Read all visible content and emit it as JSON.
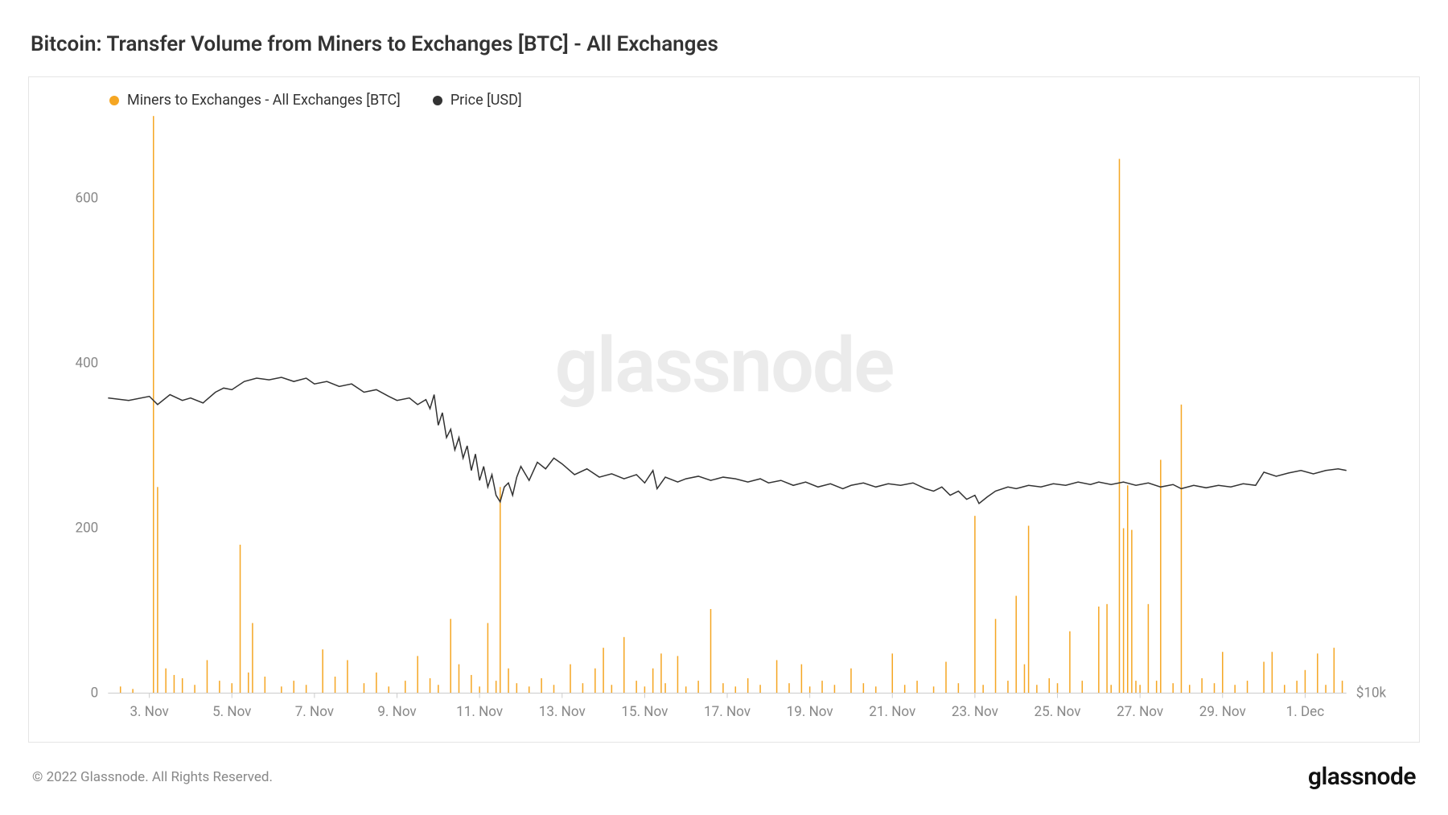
{
  "title": "Bitcoin: Transfer Volume from Miners to Exchanges [BTC] - All Exchanges",
  "watermark": "glassnode",
  "copyright": "© 2022 Glassnode. All Rights Reserved.",
  "brand": "glassnode",
  "legend": {
    "series1": {
      "label": "Miners to Exchanges - All Exchanges [BTC]",
      "color": "#f5a623"
    },
    "series2": {
      "label": "Price [USD]",
      "color": "#333333"
    }
  },
  "chart": {
    "background_color": "#ffffff",
    "border_color": "#e5e5e5",
    "y_left": {
      "min": 0,
      "max": 700,
      "ticks": [
        0,
        200,
        400,
        600
      ],
      "label_color": "#888888",
      "label_fontsize": 17
    },
    "y_right": {
      "label": "$10k",
      "label_color": "#888888"
    },
    "x": {
      "ticks": [
        "3. Nov",
        "5. Nov",
        "7. Nov",
        "9. Nov",
        "11. Nov",
        "13. Nov",
        "15. Nov",
        "17. Nov",
        "19. Nov",
        "21. Nov",
        "23. Nov",
        "25. Nov",
        "27. Nov",
        "29. Nov",
        "1. Dec"
      ],
      "label_color": "#888888",
      "label_fontsize": 17,
      "domain_min": 0,
      "domain_max": 30
    },
    "bars": {
      "color": "#f5a623",
      "width": 1.5,
      "data": [
        [
          0.3,
          8
        ],
        [
          0.6,
          5
        ],
        [
          1.1,
          700
        ],
        [
          1.2,
          250
        ],
        [
          1.4,
          30
        ],
        [
          1.6,
          22
        ],
        [
          1.8,
          18
        ],
        [
          2.1,
          10
        ],
        [
          2.4,
          40
        ],
        [
          2.7,
          15
        ],
        [
          3.0,
          12
        ],
        [
          3.2,
          180
        ],
        [
          3.4,
          25
        ],
        [
          3.5,
          85
        ],
        [
          3.8,
          20
        ],
        [
          4.2,
          8
        ],
        [
          4.5,
          15
        ],
        [
          4.8,
          10
        ],
        [
          5.2,
          53
        ],
        [
          5.5,
          20
        ],
        [
          5.8,
          40
        ],
        [
          6.2,
          12
        ],
        [
          6.5,
          25
        ],
        [
          6.8,
          8
        ],
        [
          7.2,
          15
        ],
        [
          7.5,
          45
        ],
        [
          7.8,
          18
        ],
        [
          8.0,
          10
        ],
        [
          8.3,
          90
        ],
        [
          8.5,
          35
        ],
        [
          8.8,
          22
        ],
        [
          9.0,
          8
        ],
        [
          9.2,
          85
        ],
        [
          9.4,
          15
        ],
        [
          9.5,
          250
        ],
        [
          9.7,
          30
        ],
        [
          9.9,
          12
        ],
        [
          10.2,
          8
        ],
        [
          10.5,
          18
        ],
        [
          10.8,
          10
        ],
        [
          11.2,
          35
        ],
        [
          11.5,
          12
        ],
        [
          11.8,
          30
        ],
        [
          12.0,
          55
        ],
        [
          12.2,
          10
        ],
        [
          12.5,
          68
        ],
        [
          12.8,
          15
        ],
        [
          13.0,
          8
        ],
        [
          13.2,
          30
        ],
        [
          13.4,
          48
        ],
        [
          13.5,
          12
        ],
        [
          13.8,
          45
        ],
        [
          14.0,
          8
        ],
        [
          14.3,
          15
        ],
        [
          14.6,
          102
        ],
        [
          14.9,
          12
        ],
        [
          15.2,
          8
        ],
        [
          15.5,
          18
        ],
        [
          15.8,
          10
        ],
        [
          16.2,
          40
        ],
        [
          16.5,
          12
        ],
        [
          16.8,
          35
        ],
        [
          17.0,
          8
        ],
        [
          17.3,
          15
        ],
        [
          17.6,
          10
        ],
        [
          18.0,
          30
        ],
        [
          18.3,
          12
        ],
        [
          18.6,
          8
        ],
        [
          19.0,
          48
        ],
        [
          19.3,
          10
        ],
        [
          19.6,
          15
        ],
        [
          20.0,
          8
        ],
        [
          20.3,
          38
        ],
        [
          20.6,
          12
        ],
        [
          21.0,
          215
        ],
        [
          21.2,
          10
        ],
        [
          21.5,
          90
        ],
        [
          21.8,
          15
        ],
        [
          22.0,
          118
        ],
        [
          22.2,
          35
        ],
        [
          22.3,
          203
        ],
        [
          22.5,
          10
        ],
        [
          22.8,
          18
        ],
        [
          23.0,
          12
        ],
        [
          23.3,
          75
        ],
        [
          23.6,
          15
        ],
        [
          24.0,
          105
        ],
        [
          24.2,
          108
        ],
        [
          24.3,
          10
        ],
        [
          24.5,
          648
        ],
        [
          24.6,
          200
        ],
        [
          24.7,
          252
        ],
        [
          24.8,
          198
        ],
        [
          24.9,
          15
        ],
        [
          25.0,
          10
        ],
        [
          25.2,
          108
        ],
        [
          25.4,
          15
        ],
        [
          25.5,
          283
        ],
        [
          25.8,
          12
        ],
        [
          26.0,
          350
        ],
        [
          26.2,
          10
        ],
        [
          26.5,
          18
        ],
        [
          26.8,
          12
        ],
        [
          27.0,
          50
        ],
        [
          27.3,
          10
        ],
        [
          27.6,
          15
        ],
        [
          28.0,
          38
        ],
        [
          28.2,
          50
        ],
        [
          28.5,
          10
        ],
        [
          28.8,
          15
        ],
        [
          29.0,
          28
        ],
        [
          29.3,
          48
        ],
        [
          29.5,
          10
        ],
        [
          29.7,
          55
        ],
        [
          29.9,
          15
        ]
      ]
    },
    "price_line": {
      "color": "#333333",
      "width": 1.5,
      "data": [
        [
          0,
          358
        ],
        [
          0.5,
          355
        ],
        [
          1,
          360
        ],
        [
          1.2,
          350
        ],
        [
          1.5,
          362
        ],
        [
          1.8,
          355
        ],
        [
          2,
          358
        ],
        [
          2.3,
          352
        ],
        [
          2.6,
          365
        ],
        [
          2.8,
          370
        ],
        [
          3,
          368
        ],
        [
          3.3,
          378
        ],
        [
          3.6,
          382
        ],
        [
          3.9,
          380
        ],
        [
          4.2,
          383
        ],
        [
          4.5,
          378
        ],
        [
          4.8,
          382
        ],
        [
          5,
          375
        ],
        [
          5.3,
          378
        ],
        [
          5.6,
          372
        ],
        [
          5.9,
          375
        ],
        [
          6.2,
          365
        ],
        [
          6.5,
          368
        ],
        [
          6.8,
          360
        ],
        [
          7,
          355
        ],
        [
          7.3,
          358
        ],
        [
          7.5,
          350
        ],
        [
          7.7,
          356
        ],
        [
          7.8,
          345
        ],
        [
          7.9,
          362
        ],
        [
          8,
          325
        ],
        [
          8.1,
          340
        ],
        [
          8.2,
          310
        ],
        [
          8.3,
          320
        ],
        [
          8.4,
          295
        ],
        [
          8.5,
          310
        ],
        [
          8.6,
          285
        ],
        [
          8.7,
          300
        ],
        [
          8.8,
          270
        ],
        [
          8.9,
          290
        ],
        [
          9,
          258
        ],
        [
          9.1,
          275
        ],
        [
          9.2,
          250
        ],
        [
          9.3,
          265
        ],
        [
          9.4,
          240
        ],
        [
          9.5,
          232
        ],
        [
          9.6,
          250
        ],
        [
          9.7,
          255
        ],
        [
          9.8,
          240
        ],
        [
          9.9,
          262
        ],
        [
          10,
          275
        ],
        [
          10.2,
          258
        ],
        [
          10.4,
          280
        ],
        [
          10.6,
          272
        ],
        [
          10.8,
          285
        ],
        [
          11,
          278
        ],
        [
          11.3,
          265
        ],
        [
          11.6,
          272
        ],
        [
          11.9,
          262
        ],
        [
          12.2,
          266
        ],
        [
          12.5,
          260
        ],
        [
          12.8,
          265
        ],
        [
          13,
          255
        ],
        [
          13.2,
          270
        ],
        [
          13.3,
          248
        ],
        [
          13.5,
          262
        ],
        [
          13.8,
          256
        ],
        [
          14,
          260
        ],
        [
          14.3,
          263
        ],
        [
          14.6,
          258
        ],
        [
          14.9,
          262
        ],
        [
          15.2,
          260
        ],
        [
          15.5,
          256
        ],
        [
          15.8,
          260
        ],
        [
          16,
          255
        ],
        [
          16.3,
          258
        ],
        [
          16.6,
          252
        ],
        [
          16.9,
          256
        ],
        [
          17.2,
          250
        ],
        [
          17.5,
          254
        ],
        [
          17.8,
          248
        ],
        [
          18,
          252
        ],
        [
          18.3,
          255
        ],
        [
          18.6,
          250
        ],
        [
          18.9,
          254
        ],
        [
          19.2,
          252
        ],
        [
          19.5,
          255
        ],
        [
          19.8,
          248
        ],
        [
          20,
          245
        ],
        [
          20.2,
          250
        ],
        [
          20.4,
          240
        ],
        [
          20.6,
          245
        ],
        [
          20.8,
          235
        ],
        [
          21,
          240
        ],
        [
          21.1,
          230
        ],
        [
          21.3,
          238
        ],
        [
          21.5,
          245
        ],
        [
          21.8,
          250
        ],
        [
          22,
          248
        ],
        [
          22.3,
          252
        ],
        [
          22.6,
          250
        ],
        [
          22.9,
          254
        ],
        [
          23.2,
          252
        ],
        [
          23.5,
          256
        ],
        [
          23.8,
          253
        ],
        [
          24,
          256
        ],
        [
          24.3,
          253
        ],
        [
          24.6,
          256
        ],
        [
          24.9,
          252
        ],
        [
          25.2,
          255
        ],
        [
          25.5,
          250
        ],
        [
          25.8,
          253
        ],
        [
          26,
          248
        ],
        [
          26.3,
          252
        ],
        [
          26.6,
          249
        ],
        [
          26.9,
          252
        ],
        [
          27.2,
          250
        ],
        [
          27.5,
          254
        ],
        [
          27.8,
          252
        ],
        [
          28,
          268
        ],
        [
          28.3,
          263
        ],
        [
          28.6,
          267
        ],
        [
          28.9,
          270
        ],
        [
          29.2,
          266
        ],
        [
          29.5,
          270
        ],
        [
          29.8,
          272
        ],
        [
          30,
          270
        ]
      ]
    }
  }
}
